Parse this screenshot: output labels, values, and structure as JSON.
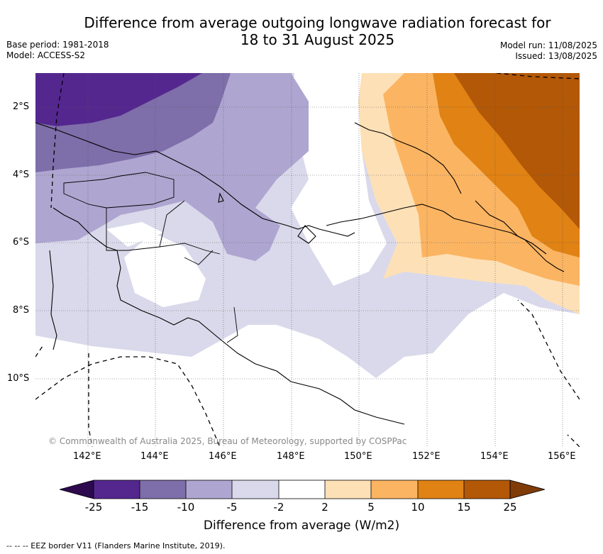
{
  "title_line1": "Difference from average outgoing longwave radiation forecast for",
  "title_line2": "18 to 31 August 2025",
  "base_period": "Base period: 1981-2018",
  "model": "Model: ACCESS-S2",
  "model_run": "Model run: 11/08/2025",
  "issued": "Issued: 13/08/2025",
  "copyright": "© Commonwealth of Australia 2025, Bureau of Meteorology, supported by COSPPac",
  "lat_labels": [
    "2°S",
    "4°S",
    "6°S",
    "8°S",
    "10°S"
  ],
  "lon_labels": [
    "142°E",
    "144°E",
    "146°E",
    "148°E",
    "150°E",
    "152°E",
    "154°E",
    "156°E"
  ],
  "colorbar": {
    "label": "Difference from average (W/m2)",
    "ticks": [
      "-25",
      "-15",
      "-10",
      "-5",
      "-2",
      "2",
      "5",
      "10",
      "15",
      "25"
    ],
    "colors": [
      "#2d0a4e",
      "#54278f",
      "#7e6ea9",
      "#aea6d0",
      "#d9d9eb",
      "#ffffff",
      "#fee0b6",
      "#fbb462",
      "#e08214",
      "#b35806",
      "#7f3b08"
    ]
  },
  "footer": "--  --  -- EEZ border V11 (Flanders Marine Institute, 2019)."
}
